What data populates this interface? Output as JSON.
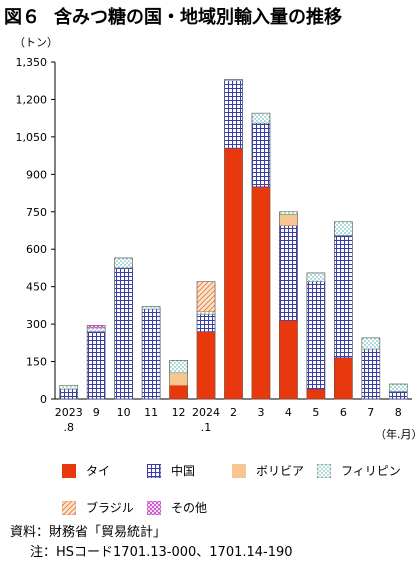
{
  "figure_label": "図６",
  "title": "含みつ糖の国・地域別輸入量の推移",
  "y_unit": "（トン）",
  "x_unit": "（年.月）",
  "source": "資料：財務省「貿易統計」",
  "note": "注：HSコード1701.13-000、1701.14-190",
  "colors": {
    "thai": "#e8380d",
    "china_fill": "#ffffff",
    "china_line": "#3a3fa8",
    "bolivia": "#f5c690",
    "philippines_dot": "#3aa8a0",
    "brazil_line": "#e07a3a",
    "other_line": "#c83cc8"
  },
  "chart_data": {
    "type": "bar",
    "stacked": true,
    "categories": [
      [
        "2023",
        ".8"
      ],
      [
        "9"
      ],
      [
        "10"
      ],
      [
        "11"
      ],
      [
        "12"
      ],
      [
        "2024",
        ".1"
      ],
      [
        "2"
      ],
      [
        "3"
      ],
      [
        "4"
      ],
      [
        "5"
      ],
      [
        "6"
      ],
      [
        "7"
      ],
      [
        "8"
      ]
    ],
    "ylim": [
      0,
      1350
    ],
    "yticks": [
      0,
      150,
      300,
      450,
      600,
      750,
      900,
      1050,
      1200,
      1350
    ],
    "ytick_labels": [
      "0",
      "150",
      "300",
      "450",
      "600",
      "750",
      "900",
      "1,050",
      "1,200",
      "1,350"
    ],
    "series": [
      {
        "name": "タイ",
        "key": "thai",
        "values": [
          0,
          0,
          0,
          0,
          55,
          270,
          1005,
          850,
          315,
          40,
          165,
          0,
          0
        ]
      },
      {
        "name": "中国",
        "key": "china",
        "values": [
          40,
          270,
          525,
          360,
          0,
          70,
          270,
          255,
          380,
          430,
          490,
          200,
          30
        ]
      },
      {
        "name": "ボリビア",
        "key": "bolivia",
        "values": [
          0,
          0,
          0,
          0,
          50,
          0,
          0,
          0,
          45,
          0,
          0,
          0,
          0
        ]
      },
      {
        "name": "フィリピン",
        "key": "philippines",
        "values": [
          15,
          15,
          40,
          10,
          50,
          10,
          5,
          40,
          10,
          35,
          55,
          45,
          30
        ]
      },
      {
        "name": "ブラジル",
        "key": "brazil",
        "values": [
          0,
          0,
          0,
          0,
          0,
          120,
          0,
          0,
          0,
          0,
          0,
          0,
          0
        ]
      },
      {
        "name": "その他",
        "key": "other",
        "values": [
          0,
          10,
          0,
          0,
          0,
          0,
          0,
          0,
          0,
          0,
          0,
          0,
          0
        ]
      }
    ]
  }
}
